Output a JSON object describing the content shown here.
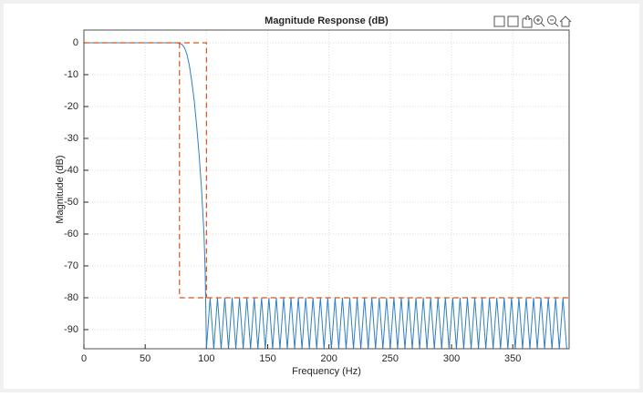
{
  "chart_data": {
    "type": "line",
    "title": "Magnitude Response (dB)",
    "x_label": "Frequency (Hz)",
    "y_label": "Magnitude (dB)",
    "xlim": [
      0,
      396
    ],
    "ylim": [
      -96,
      4
    ],
    "xticks": [
      0,
      50,
      100,
      150,
      200,
      250,
      300,
      350
    ],
    "yticks": [
      0,
      -10,
      -20,
      -30,
      -40,
      -50,
      -60,
      -70,
      -80,
      -90
    ],
    "grid": true,
    "series": [
      {
        "color": "#2f7fc1",
        "dash": false,
        "x": [
          0,
          10,
          20,
          30,
          40,
          50,
          60,
          70,
          76,
          78,
          80,
          82,
          84,
          86,
          88,
          90,
          92,
          94,
          96,
          98,
          99,
          100,
          103,
          106,
          109,
          112,
          115,
          118,
          121,
          124,
          127,
          130,
          133,
          136,
          139,
          142,
          145,
          148,
          151,
          154,
          157,
          160,
          163,
          166,
          169,
          172,
          175,
          178,
          181,
          184,
          187,
          190,
          193,
          196,
          199,
          202,
          205,
          208,
          211,
          214,
          217,
          220,
          223,
          226,
          229,
          232,
          235,
          238,
          241,
          244,
          247,
          250,
          253,
          256,
          259,
          262,
          265,
          268,
          271,
          274,
          277,
          280,
          283,
          286,
          289,
          292,
          295,
          298,
          301,
          304,
          307,
          310,
          313,
          316,
          319,
          322,
          325,
          328,
          331,
          334,
          337,
          340,
          343,
          346,
          349,
          352,
          355,
          358,
          361,
          364,
          367,
          370,
          373,
          376,
          379,
          382,
          385,
          388,
          391,
          394
        ],
        "values": [
          0,
          0,
          0,
          0,
          0,
          0,
          0,
          0,
          0,
          -0.1,
          -0.5,
          -1.5,
          -3.5,
          -7,
          -12,
          -18,
          -26,
          -35,
          -46,
          -60,
          -72,
          -96,
          -80,
          -96,
          -80,
          -96,
          -80,
          -96,
          -80,
          -96,
          -80,
          -96,
          -80,
          -96,
          -80,
          -96,
          -80,
          -96,
          -80,
          -96,
          -80,
          -96,
          -80,
          -96,
          -80,
          -96,
          -80,
          -96,
          -80,
          -96,
          -80,
          -96,
          -80,
          -96,
          -80,
          -96,
          -80,
          -96,
          -80,
          -96,
          -80,
          -96,
          -80,
          -96,
          -80,
          -96,
          -80,
          -96,
          -80,
          -96,
          -80,
          -96,
          -80,
          -96,
          -80,
          -96,
          -80,
          -96,
          -80,
          -96,
          -80,
          -96,
          -80,
          -96,
          -80,
          -96,
          -80,
          -96,
          -80,
          -96,
          -80,
          -96,
          -80,
          -96,
          -80,
          -96,
          -80,
          -96,
          -80,
          -96,
          -80,
          -96,
          -80,
          -96,
          -80,
          -96,
          -80,
          -96,
          -80,
          -96,
          -80,
          -96,
          -80,
          -96,
          -80,
          -96,
          -80,
          -96,
          -80,
          -96
        ]
      },
      {
        "color": "#d95319",
        "dash": true,
        "x": [
          0,
          100,
          100
        ],
        "values": [
          0,
          0,
          -80
        ]
      },
      {
        "color": "#d95319",
        "dash": true,
        "x": [
          78,
          78,
          396
        ],
        "values": [
          0,
          -80,
          -80
        ]
      }
    ]
  }
}
